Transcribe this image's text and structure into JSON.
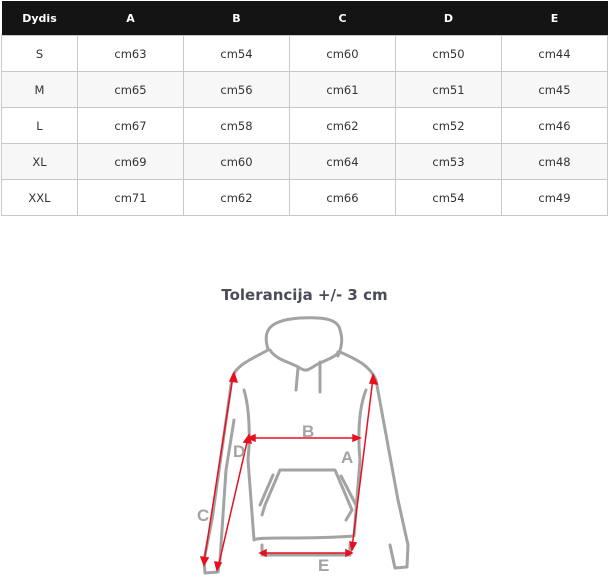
{
  "table": {
    "headers": [
      "Dydis",
      "A",
      "B",
      "C",
      "D",
      "E"
    ],
    "rows": [
      [
        "S",
        "cm63",
        "cm54",
        "cm60",
        "cm50",
        "cm44"
      ],
      [
        "M",
        "cm65",
        "cm56",
        "cm61",
        "cm51",
        "cm45"
      ],
      [
        "L",
        "cm67",
        "cm58",
        "cm62",
        "cm52",
        "cm46"
      ],
      [
        "XL",
        "cm69",
        "cm60",
        "cm64",
        "cm53",
        "cm48"
      ],
      [
        "XXL",
        "cm71",
        "cm62",
        "cm66",
        "cm54",
        "cm49"
      ]
    ]
  },
  "diagram": {
    "title": "Tolerancija +/- 3 cm",
    "labels": {
      "A": "A",
      "B": "B",
      "C": "C",
      "D": "D",
      "E": "E"
    },
    "arrow_color": "#e8101e",
    "outline_color": "#a3a3a3"
  }
}
